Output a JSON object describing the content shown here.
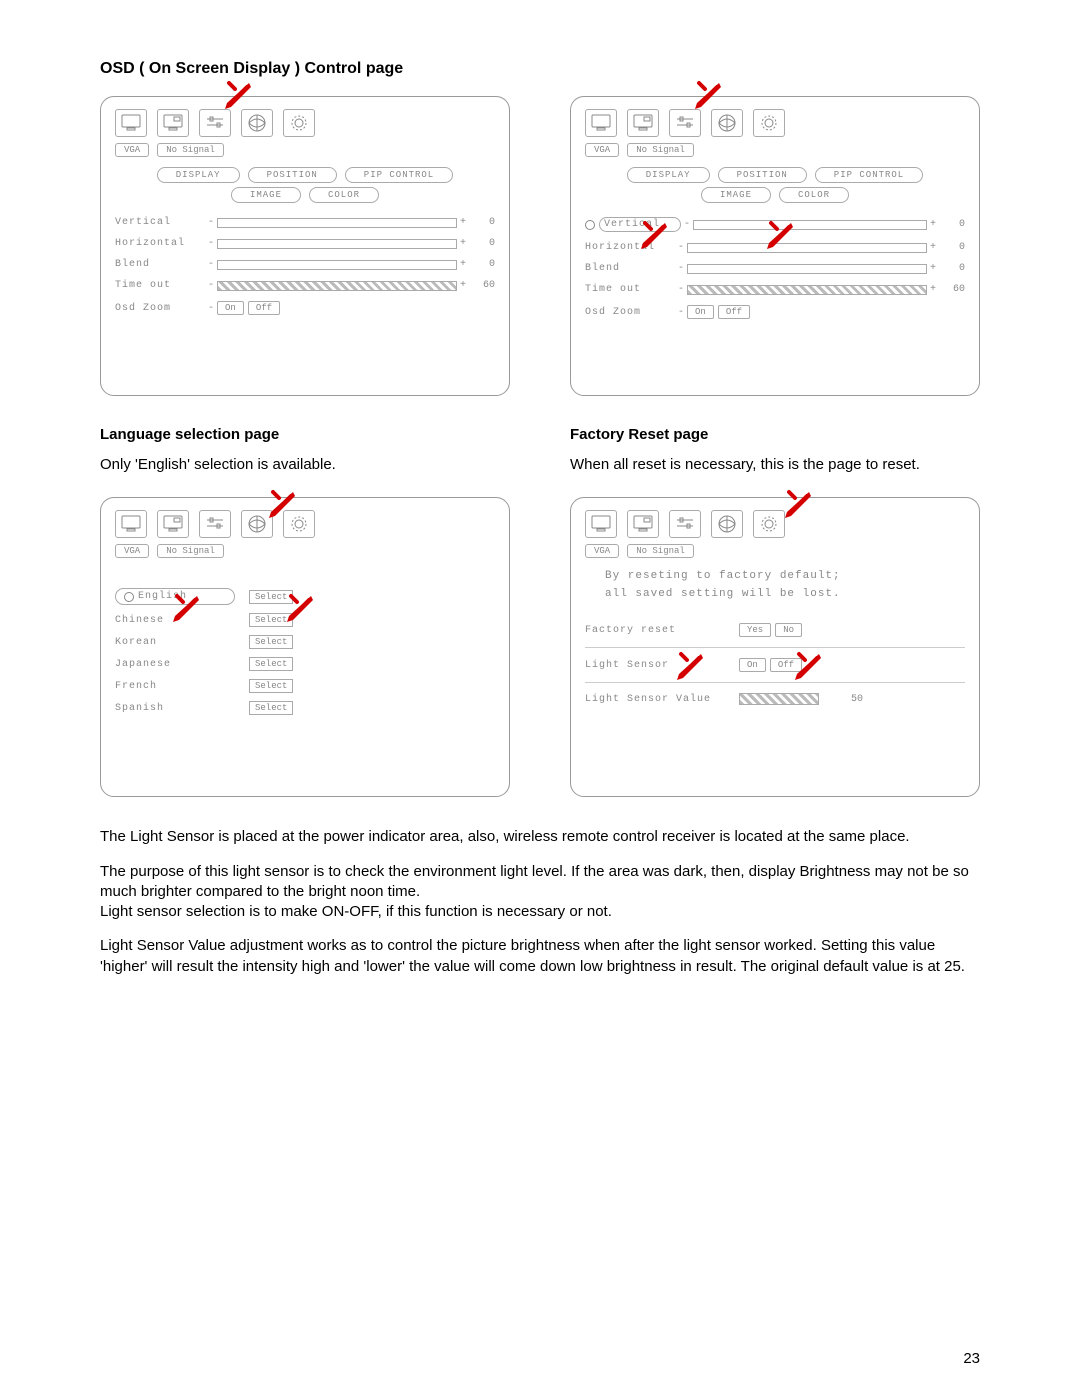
{
  "page_number": "23",
  "colors": {
    "arrow": "#d40000",
    "panel_border": "#999999",
    "text_muted": "#888888",
    "hatch": "#bbbbbb"
  },
  "headings": {
    "osd": "OSD ( On Screen Display ) Control page",
    "language": "Language selection page",
    "factory": "Factory Reset page"
  },
  "captions": {
    "language": "Only 'English' selection is available.",
    "factory": "When all reset is necessary, this is the page to reset."
  },
  "osd_panel": {
    "status": {
      "left": "VGA",
      "right": "No Signal"
    },
    "tabs_row1": [
      "DISPLAY",
      "POSITION",
      "PIP CONTROL"
    ],
    "tabs_row2": [
      "IMAGE",
      "COLOR"
    ],
    "rows": [
      {
        "label": "Vertical",
        "value": "0",
        "hatched": false
      },
      {
        "label": "Horizontal",
        "value": "0",
        "hatched": false
      },
      {
        "label": "Blend",
        "value": "0",
        "hatched": false
      },
      {
        "label": "Time out",
        "value": "60",
        "hatched": true
      }
    ],
    "zoom": {
      "label": "Osd Zoom",
      "on": "On",
      "off": "Off"
    }
  },
  "language_panel": {
    "items": [
      {
        "name": "English",
        "selected": true,
        "btn": "Select"
      },
      {
        "name": "Chinese",
        "selected": false,
        "btn": "Select"
      },
      {
        "name": "Korean",
        "selected": false,
        "btn": "Select"
      },
      {
        "name": "Japanese",
        "selected": false,
        "btn": "Select"
      },
      {
        "name": "French",
        "selected": false,
        "btn": "Select"
      },
      {
        "name": "Spanish",
        "selected": false,
        "btn": "Select"
      }
    ]
  },
  "factory_panel": {
    "message_l1": "By reseting to factory default;",
    "message_l2": "all saved setting will be lost.",
    "factory_reset_label": "Factory reset",
    "yes": "Yes",
    "no": "No",
    "light_sensor_label": "Light Sensor",
    "on": "On",
    "off": "Off",
    "light_value_label": "Light Sensor Value",
    "light_value": "50"
  },
  "paragraphs": {
    "p1": "The Light Sensor is placed at the power indicator area, also, wireless remote control receiver is located at the same place.",
    "p2": "The purpose of this light sensor is to check the environment light level.    If the area was dark, then, display Brightness may not be so much brighter compared to the bright noon time.",
    "p3": "Light sensor selection is to make ON-OFF, if this function is necessary or not.",
    "p4": "Light Sensor Value adjustment works as to control the picture brightness when after the light sensor worked. Setting this value 'higher' will result the intensity high and 'lower' the value will come down low brightness in result.    The original default value is at 25."
  }
}
